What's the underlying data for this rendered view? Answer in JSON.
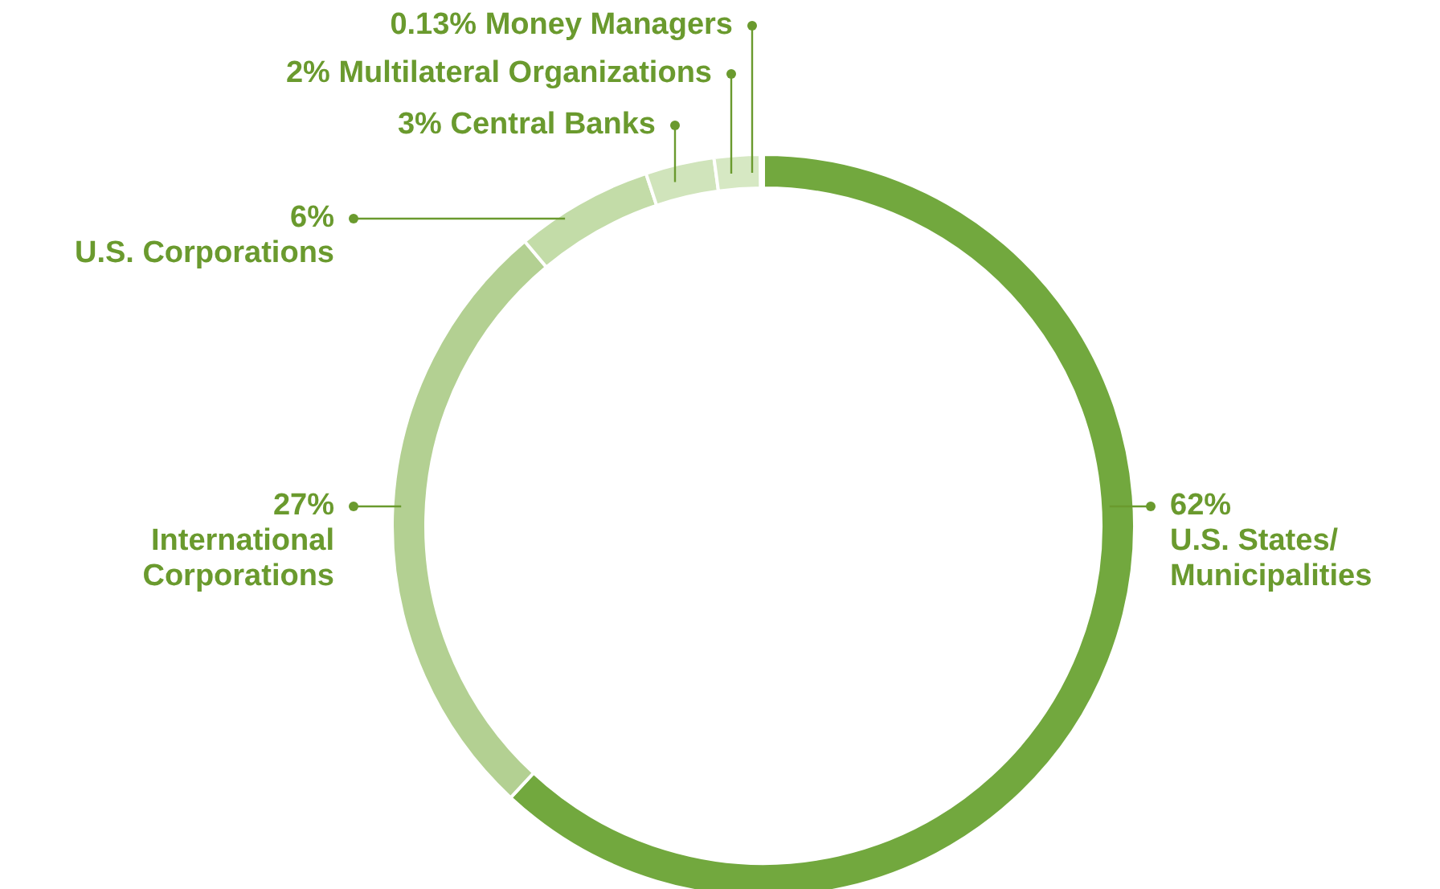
{
  "chart_data": {
    "type": "donut",
    "categories": [
      "U.S. States/ Municipalities",
      "International Corporations",
      "U.S. Corporations",
      "Central Banks",
      "Multilateral Organizations",
      "Money Managers"
    ],
    "values": [
      62,
      27,
      6,
      3,
      2,
      0.13
    ],
    "value_labels": [
      "62%",
      "27%",
      "6%",
      "3%",
      "2%",
      "0.13%"
    ],
    "colors": [
      "#72a83e",
      "#b3d092",
      "#c3dca8",
      "#d0e4bb",
      "#d6e8c3",
      "#cadfb3"
    ]
  }
}
